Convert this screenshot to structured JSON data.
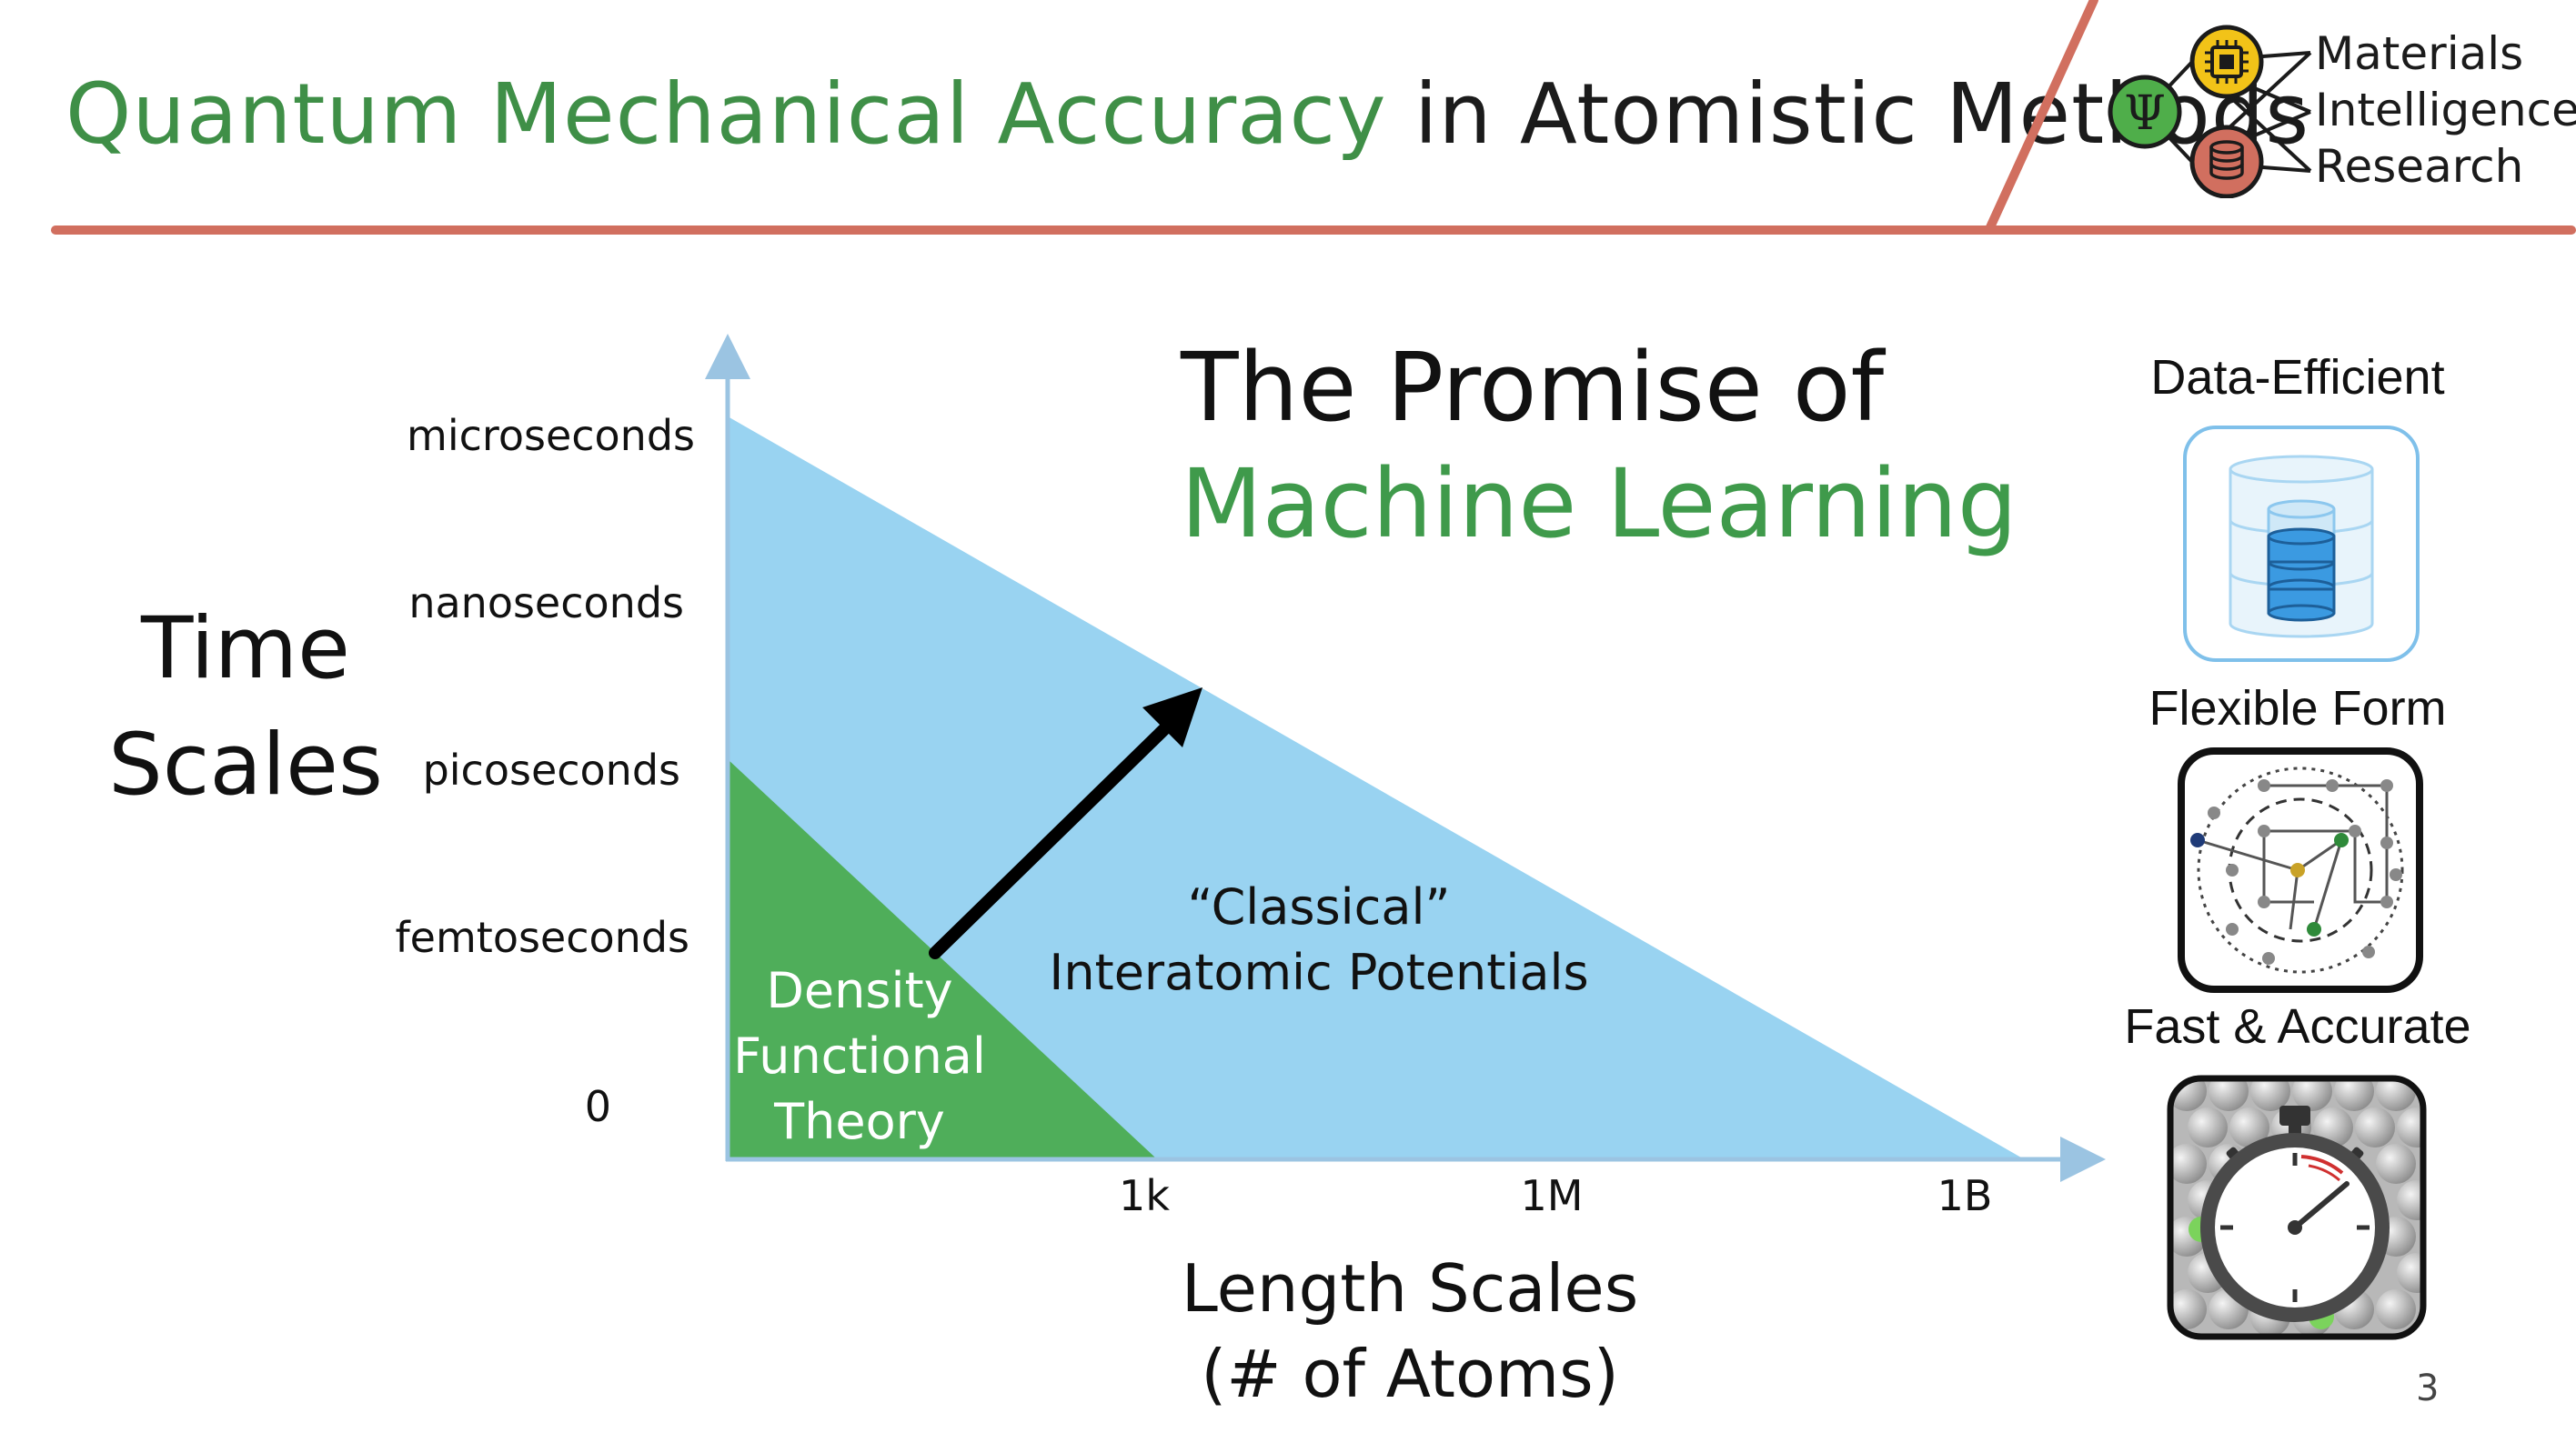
{
  "slide": {
    "title_green": "Quantum Mechanical Accuracy",
    "title_black": "in Atomistic Methods",
    "page_number": "3",
    "colors": {
      "green": "#3f8f47",
      "accent": "#d16f5f",
      "blue_region": "#99d3f1",
      "green_region": "#4fae5a"
    }
  },
  "logo": {
    "lines": [
      "Materials",
      "Intelligence",
      "Research"
    ],
    "psi_symbol": "Ψ",
    "icons": [
      "psi-icon",
      "chip-icon",
      "database-icon"
    ]
  },
  "diagram": {
    "heading_line1": "The Promise of",
    "heading_line2": "Machine Learning",
    "y_axis_title": [
      "Time",
      "Scales"
    ],
    "y_ticks": [
      "microseconds",
      "nanoseconds",
      "picoseconds",
      "femtoseconds",
      "0"
    ],
    "x_ticks": [
      "1k",
      "1M",
      "1B"
    ],
    "x_axis_title": [
      "Length Scales",
      "(# of Atoms)"
    ],
    "classical_label": [
      "“Classical”",
      "Interatomic Potentials"
    ],
    "dft_label": [
      "Density",
      "Functional",
      "Theory"
    ]
  },
  "features": [
    {
      "label": "Data-Efficient",
      "icon": "database-stack-icon"
    },
    {
      "label": "Flexible Form",
      "icon": "graph-network-icon"
    },
    {
      "label": "Fast & Accurate",
      "icon": "stopwatch-icon"
    }
  ]
}
